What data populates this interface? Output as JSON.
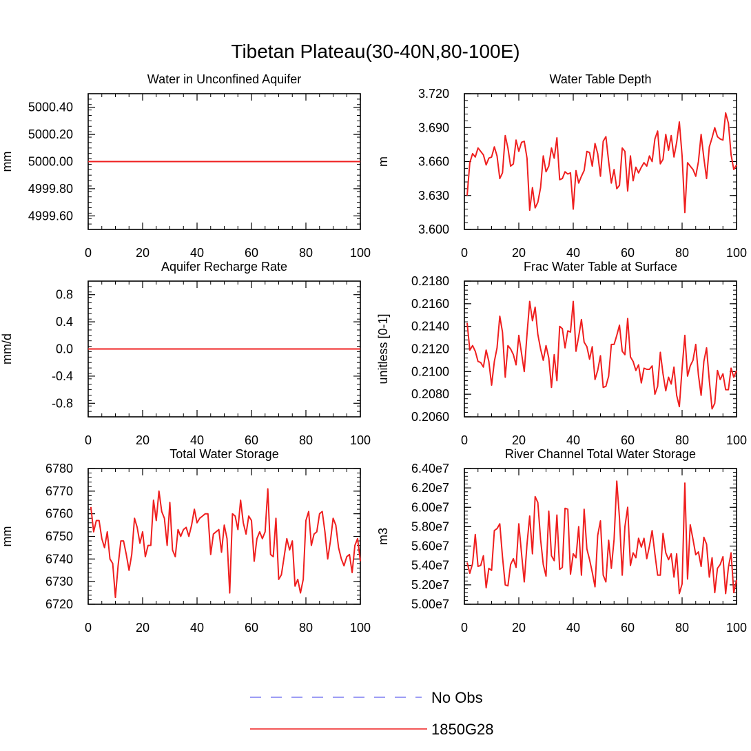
{
  "figure_title": "Tibetan Plateau(30-40N,80-100E)",
  "legend": {
    "items": [
      {
        "label": "No Obs",
        "color": "#7b7bf2",
        "dashed": true
      },
      {
        "label": "1850G28",
        "color": "#ef1f1f",
        "dashed": false
      }
    ]
  },
  "chart_data": [
    {
      "type": "line",
      "title": "Water in Unconfined Aquifer",
      "ylabel": "mm",
      "xlim": [
        0,
        100
      ],
      "ylim": [
        4999.5,
        5000.5
      ],
      "xticks": [
        0,
        20,
        40,
        60,
        80,
        100
      ],
      "xtick_labels": [
        "0",
        "20",
        "40",
        "60",
        "80",
        "100"
      ],
      "yticks": [
        4999.6,
        4999.8,
        5000.0,
        5000.2,
        5000.4
      ],
      "ytick_labels": [
        "4999.60",
        "4999.80",
        "5000.00",
        "5000.20",
        "5000.40"
      ],
      "yminor_step": 0.04,
      "series": [
        {
          "name": "1850G28",
          "color": "#ef1f1f",
          "x": [
            0,
            100
          ],
          "y": [
            5000.0,
            5000.0
          ]
        }
      ]
    },
    {
      "type": "line",
      "title": "Water Table Depth",
      "ylabel": "m",
      "xlim": [
        0,
        100
      ],
      "ylim": [
        3.6,
        3.72
      ],
      "xticks": [
        0,
        20,
        40,
        60,
        80,
        100
      ],
      "xtick_labels": [
        "0",
        "20",
        "40",
        "60",
        "80",
        "100"
      ],
      "yticks": [
        3.6,
        3.63,
        3.66,
        3.69,
        3.72
      ],
      "ytick_labels": [
        "3.600",
        "3.630",
        "3.660",
        "3.690",
        "3.720"
      ],
      "yminor_step": 0.006,
      "series": [
        {
          "name": "1850G28",
          "color": "#ef1f1f",
          "x_start": 1,
          "y": [
            3.63,
            3.659,
            3.667,
            3.664,
            3.672,
            3.669,
            3.666,
            3.657,
            3.663,
            3.664,
            3.673,
            3.665,
            3.645,
            3.65,
            3.683,
            3.672,
            3.656,
            3.658,
            3.679,
            3.669,
            3.677,
            3.678,
            3.663,
            3.617,
            3.637,
            3.619,
            3.624,
            3.637,
            3.665,
            3.651,
            3.656,
            3.672,
            3.663,
            3.681,
            3.644,
            3.645,
            3.651,
            3.649,
            3.65,
            3.618,
            3.652,
            3.641,
            3.647,
            3.652,
            3.669,
            3.668,
            3.656,
            3.676,
            3.667,
            3.647,
            3.678,
            3.682,
            3.66,
            3.641,
            3.653,
            3.636,
            3.639,
            3.672,
            3.669,
            3.634,
            3.665,
            3.643,
            3.655,
            3.65,
            3.655,
            3.659,
            3.656,
            3.665,
            3.66,
            3.68,
            3.687,
            3.658,
            3.662,
            3.684,
            3.67,
            3.683,
            3.664,
            3.677,
            3.695,
            3.665,
            3.615,
            3.659,
            3.656,
            3.653,
            3.647,
            3.66,
            3.684,
            3.663,
            3.645,
            3.673,
            3.681,
            3.69,
            3.682,
            3.68,
            3.679,
            3.703,
            3.694,
            3.666,
            3.653,
            3.657
          ]
        }
      ]
    },
    {
      "type": "line",
      "title": "Aquifer Recharge Rate",
      "ylabel": "mm/d",
      "xlim": [
        0,
        100
      ],
      "ylim": [
        -1.0,
        1.0
      ],
      "xticks": [
        0,
        20,
        40,
        60,
        80,
        100
      ],
      "xtick_labels": [
        "0",
        "20",
        "40",
        "60",
        "80",
        "100"
      ],
      "yticks": [
        -0.8,
        -0.4,
        0.0,
        0.4,
        0.8
      ],
      "ytick_labels": [
        "-0.8",
        "-0.4",
        "0.0",
        "0.4",
        "0.8"
      ],
      "yminor_step": 0.08,
      "series": [
        {
          "name": "1850G28",
          "color": "#ef1f1f",
          "x": [
            0,
            100
          ],
          "y": [
            0.0,
            0.0
          ]
        }
      ]
    },
    {
      "type": "line",
      "title": "Frac Water Table at Surface",
      "ylabel": "unitless [0-1]",
      "xlim": [
        0,
        100
      ],
      "ylim": [
        0.206,
        0.218
      ],
      "xticks": [
        0,
        20,
        40,
        60,
        80,
        100
      ],
      "xtick_labels": [
        "0",
        "20",
        "40",
        "60",
        "80",
        "100"
      ],
      "yticks": [
        0.206,
        0.208,
        0.21,
        0.212,
        0.214,
        0.216,
        0.218
      ],
      "ytick_labels": [
        "0.2060",
        "0.2080",
        "0.2100",
        "0.2120",
        "0.2140",
        "0.2160",
        "0.2180"
      ],
      "yminor_step": 0.0004,
      "series": [
        {
          "name": "1850G28",
          "color": "#ef1f1f",
          "x_start": 1,
          "y": [
            0.2143,
            0.2119,
            0.2123,
            0.2118,
            0.2109,
            0.2108,
            0.2104,
            0.2119,
            0.2109,
            0.2088,
            0.2109,
            0.2121,
            0.2149,
            0.2135,
            0.2095,
            0.2123,
            0.212,
            0.2115,
            0.2106,
            0.2132,
            0.2116,
            0.21,
            0.2133,
            0.2162,
            0.2145,
            0.2157,
            0.2133,
            0.212,
            0.211,
            0.2123,
            0.2112,
            0.2086,
            0.2115,
            0.2092,
            0.214,
            0.2138,
            0.2121,
            0.2136,
            0.2135,
            0.2162,
            0.2118,
            0.2131,
            0.2146,
            0.2126,
            0.2122,
            0.2111,
            0.2122,
            0.2093,
            0.2101,
            0.2114,
            0.2086,
            0.2087,
            0.2096,
            0.2124,
            0.2124,
            0.2132,
            0.2141,
            0.2118,
            0.2115,
            0.2147,
            0.2113,
            0.2109,
            0.2101,
            0.2106,
            0.209,
            0.2103,
            0.2102,
            0.2102,
            0.2105,
            0.208,
            0.2087,
            0.2117,
            0.2098,
            0.2083,
            0.2095,
            0.2089,
            0.2104,
            0.2079,
            0.2069,
            0.2103,
            0.2132,
            0.2096,
            0.2105,
            0.211,
            0.2124,
            0.2097,
            0.2079,
            0.2109,
            0.2121,
            0.2092,
            0.2067,
            0.2072,
            0.2101,
            0.2093,
            0.2098,
            0.2084,
            0.2084,
            0.2103,
            0.2095,
            0.2101
          ]
        }
      ]
    },
    {
      "type": "line",
      "title": "Total Water Storage",
      "ylabel": "mm",
      "xlim": [
        0,
        100
      ],
      "ylim": [
        6720,
        6780
      ],
      "xticks": [
        0,
        20,
        40,
        60,
        80,
        100
      ],
      "xtick_labels": [
        "0",
        "20",
        "40",
        "60",
        "80",
        "100"
      ],
      "yticks": [
        6720,
        6730,
        6740,
        6750,
        6760,
        6770,
        6780
      ],
      "ytick_labels": [
        "6720",
        "6730",
        "6740",
        "6750",
        "6760",
        "6770",
        "6780"
      ],
      "yminor_step": 2,
      "series": [
        {
          "name": "1850G28",
          "color": "#ef1f1f",
          "x_start": 1,
          "y": [
            6763,
            6752,
            6757,
            6757,
            6749,
            6745,
            6752,
            6740,
            6738,
            6723,
            6737,
            6748,
            6748,
            6742,
            6735,
            6742,
            6758,
            6754,
            6747,
            6752,
            6741,
            6746,
            6746,
            6766,
            6757,
            6770,
            6761,
            6758,
            6746,
            6765,
            6744,
            6741,
            6753,
            6750,
            6753,
            6754,
            6750,
            6755,
            6762,
            6756,
            6758,
            6759,
            6760,
            6760,
            6742,
            6751,
            6752,
            6753,
            6743,
            6755,
            6749,
            6725,
            6760,
            6759,
            6753,
            6766,
            6756,
            6751,
            6759,
            6757,
            6739,
            6749,
            6752,
            6749,
            6752,
            6771,
            6742,
            6741,
            6758,
            6731,
            6733,
            6741,
            6749,
            6744,
            6748,
            6728,
            6731,
            6725,
            6731,
            6757,
            6761,
            6746,
            6751,
            6752,
            6760,
            6761,
            6752,
            6740,
            6748,
            6758,
            6755,
            6745,
            6740,
            6737,
            6741,
            6742,
            6734,
            6746,
            6749,
            6739
          ]
        }
      ]
    },
    {
      "type": "line",
      "title": "River Channel Total Water Storage",
      "ylabel": "m3",
      "xlim": [
        0,
        100
      ],
      "ylim": [
        50000000,
        64000000
      ],
      "xticks": [
        0,
        20,
        40,
        60,
        80,
        100
      ],
      "xtick_labels": [
        "0",
        "20",
        "40",
        "60",
        "80",
        "100"
      ],
      "yticks": [
        50000000,
        52000000,
        54000000,
        56000000,
        58000000,
        60000000,
        62000000,
        64000000
      ],
      "ytick_labels": [
        "5.00e7",
        "5.20e7",
        "5.40e7",
        "5.60e7",
        "5.80e7",
        "6.00e7",
        "6.20e7",
        "6.40e7"
      ],
      "yminor_step": 400000,
      "series": [
        {
          "name": "1850G28",
          "color": "#ef1f1f",
          "x_start": 1,
          "y": [
            54300000,
            53200000,
            54200000,
            57200000,
            53900000,
            54000000,
            55000000,
            51700000,
            53700000,
            53500000,
            57600000,
            57800000,
            58300000,
            54900000,
            52000000,
            51900000,
            54100000,
            54700000,
            53800000,
            58300000,
            55200000,
            52300000,
            56200000,
            59100000,
            55200000,
            61100000,
            60500000,
            56700000,
            54100000,
            52900000,
            59600000,
            55000000,
            54500000,
            59200000,
            53600000,
            53800000,
            59900000,
            59800000,
            53100000,
            55200000,
            54800000,
            58000000,
            53000000,
            59800000,
            55700000,
            54600000,
            53300000,
            51800000,
            57100000,
            58600000,
            53000000,
            52300000,
            56600000,
            53700000,
            56700000,
            62700000,
            58900000,
            53000000,
            58000000,
            60000000,
            54000000,
            55300000,
            54800000,
            56800000,
            55900000,
            56800000,
            54700000,
            56000000,
            57600000,
            55200000,
            53000000,
            53000000,
            57300000,
            55300000,
            54600000,
            55200000,
            52800000,
            55200000,
            51100000,
            52100000,
            62500000,
            52600000,
            58200000,
            56700000,
            55100000,
            55400000,
            53900000,
            56900000,
            56200000,
            52800000,
            54800000,
            51200000,
            53700000,
            54100000,
            54900000,
            51100000,
            53800000,
            55300000,
            51200000,
            52500000
          ]
        }
      ]
    }
  ]
}
